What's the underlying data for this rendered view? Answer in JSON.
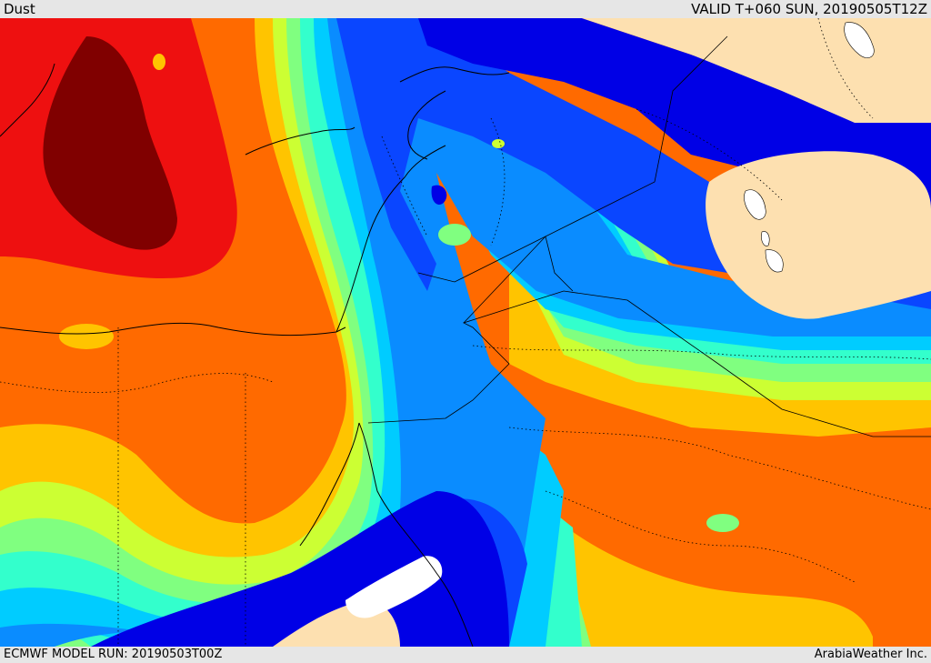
{
  "header": {
    "field_name": "Dust",
    "valid_time": "VALID T+060 SUN, 20190505T12Z"
  },
  "footer": {
    "model_run": "ECMWF MODEL RUN: 20190503T00Z",
    "credit": "ArabiaWeather Inc."
  },
  "map": {
    "colors": {
      "land_no_dust": "#fde0b0",
      "dark_red": "#800000",
      "red": "#ee1010",
      "orange": "#ff6a00",
      "amber": "#ffc400",
      "yellow_green": "#ccff33",
      "light_green": "#80ff80",
      "aquamarine": "#33ffcc",
      "cyan": "#00ccff",
      "sky_blue": "#0a8cff",
      "royal_blue": "#0a46ff",
      "deep_blue": "#0000e6",
      "water": "#ffffff",
      "borders": "#000000"
    }
  }
}
